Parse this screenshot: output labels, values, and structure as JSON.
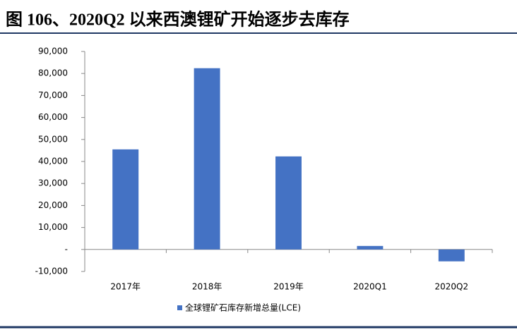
{
  "chart_data": {
    "type": "bar",
    "title": "图 106、2020Q2 以来西澳锂矿开始逐步去库存",
    "categories": [
      "2017年",
      "2018年",
      "2019年",
      "2020Q1",
      "2020Q2"
    ],
    "series": [
      {
        "name": "全球锂矿石库存新增总量(LCE)",
        "color": "#4472c4",
        "values": [
          45500,
          82400,
          42300,
          1600,
          -5400
        ]
      }
    ],
    "ylim": [
      -10000,
      90000
    ],
    "yticks": [
      {
        "value": -10000,
        "label": "-10,000"
      },
      {
        "value": 0,
        "label": "-"
      },
      {
        "value": 10000,
        "label": "10,000"
      },
      {
        "value": 20000,
        "label": "20,000"
      },
      {
        "value": 30000,
        "label": "30,000"
      },
      {
        "value": 40000,
        "label": "40,000"
      },
      {
        "value": 50000,
        "label": "50,000"
      },
      {
        "value": 60000,
        "label": "60,000"
      },
      {
        "value": 70000,
        "label": "70,000"
      },
      {
        "value": 80000,
        "label": "80,000"
      },
      {
        "value": 90000,
        "label": "90,000"
      }
    ],
    "legend": "bottom"
  }
}
